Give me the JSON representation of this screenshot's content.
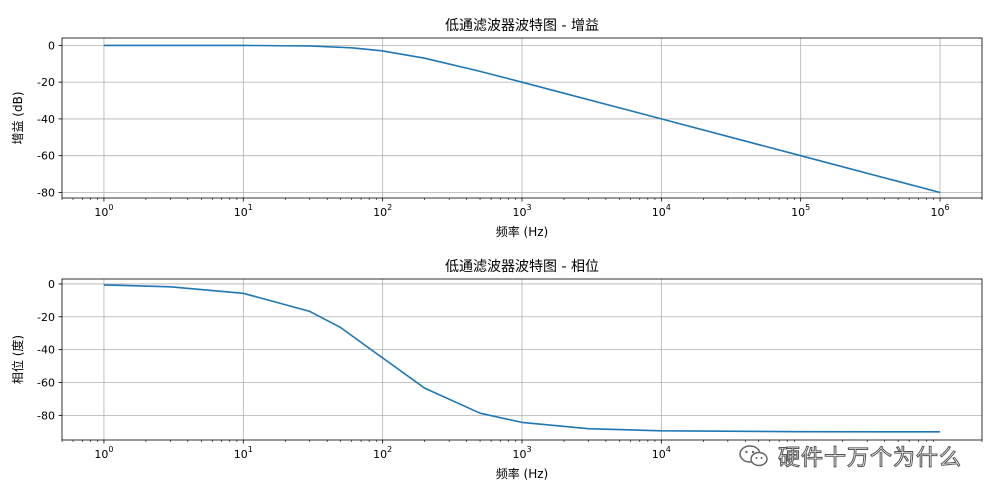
{
  "chart_data": [
    {
      "type": "line",
      "title": "低通滤波器波特图 - 增益",
      "xlabel": "频率 (Hz)",
      "ylabel": "增益 (dB)",
      "xscale": "log",
      "xlim": [
        0.5,
        2000000
      ],
      "ylim": [
        -83,
        4
      ],
      "x_ticks": [
        1,
        10,
        100,
        1000,
        10000,
        100000,
        1000000
      ],
      "y_ticks": [
        0,
        -20,
        -40,
        -60,
        -80
      ],
      "grid": true,
      "series": [
        {
          "color": "#1f77b4",
          "x": [
            1,
            10,
            30,
            60,
            100,
            200,
            500,
            1000,
            10000,
            100000,
            1000000
          ],
          "y": [
            0,
            -0.04,
            -0.37,
            -1.34,
            -3.01,
            -6.99,
            -14.15,
            -20.04,
            -40.0,
            -60.0,
            -80.0
          ]
        }
      ]
    },
    {
      "type": "line",
      "title": "低通滤波器波特图 - 相位",
      "xlabel": "频率 (Hz)",
      "ylabel": "相位 (度)",
      "xscale": "log",
      "xlim": [
        0.5,
        2000000
      ],
      "ylim": [
        -95,
        3
      ],
      "x_ticks": [
        1,
        10,
        100,
        1000,
        10000
      ],
      "y_ticks": [
        0,
        -20,
        -40,
        -60,
        -80
      ],
      "grid": true,
      "series": [
        {
          "color": "#1f77b4",
          "x": [
            1,
            3,
            10,
            30,
            50,
            100,
            200,
            500,
            1000,
            3000,
            10000,
            100000,
            1000000
          ],
          "y": [
            -0.57,
            -1.72,
            -5.71,
            -16.7,
            -26.6,
            -45.0,
            -63.4,
            -78.7,
            -84.3,
            -88.1,
            -89.4,
            -89.94,
            -89.99
          ]
        }
      ]
    }
  ],
  "watermark": {
    "text": "硬件十万个为什么",
    "icon": "wechat-icon"
  }
}
